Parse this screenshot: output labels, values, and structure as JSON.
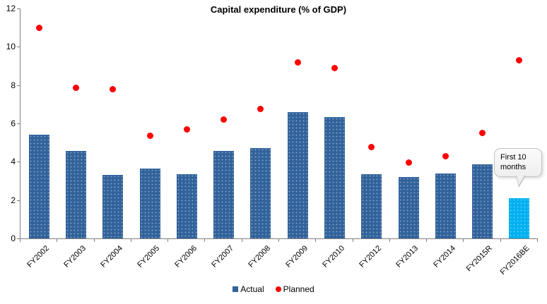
{
  "chart_data": {
    "type": "bar",
    "title": "Capital expenditure (% of GDP)",
    "categories": [
      "FY2002",
      "FY2003",
      "FY2004",
      "FY2005",
      "FY2006",
      "FY2007",
      "FY2008",
      "FY2009",
      "FY2010",
      "FY2012",
      "FY2013",
      "FY2014",
      "FY2015R",
      "FY2016BE"
    ],
    "series": [
      {
        "name": "Actual",
        "type": "bar",
        "values": [
          5.4,
          4.55,
          3.3,
          3.65,
          3.35,
          4.55,
          4.7,
          6.6,
          6.35,
          3.35,
          3.2,
          3.4,
          3.85,
          2.1
        ]
      },
      {
        "name": "Planned",
        "type": "scatter",
        "values": [
          11.0,
          7.85,
          7.8,
          5.35,
          5.7,
          6.2,
          6.75,
          9.2,
          8.9,
          4.75,
          3.95,
          4.3,
          5.5,
          9.3
        ]
      }
    ],
    "ylim": [
      0,
      12
    ],
    "yticks": [
      0,
      2,
      4,
      6,
      8,
      10,
      12
    ],
    "xlabel": "",
    "ylabel": "",
    "grid": false,
    "legend_position": "bottom",
    "highlight_category": "FY2016BE",
    "annotation": {
      "text": "First 10 months",
      "target_category": "FY2016BE"
    },
    "colors": {
      "actual_bar": "#31629B",
      "highlight_bar": "#00B0F0",
      "planned_dot": "#FF0000",
      "axis": "#7F7F7F",
      "text": "#000000"
    }
  }
}
